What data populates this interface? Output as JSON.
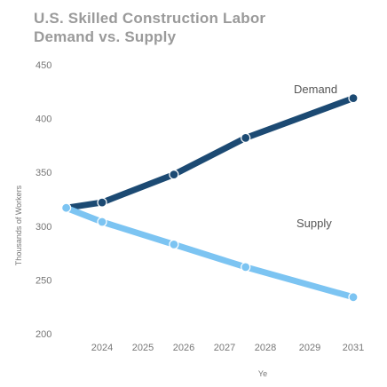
{
  "chart_data": {
    "type": "line",
    "title_lines": [
      "U.S. Skilled Construction Labor",
      "Demand vs. Supply"
    ],
    "xlabel": "Ye",
    "ylabel": "Thousands of Workers",
    "x_tick_labels": [
      "2024",
      "2025",
      "2026",
      "2027",
      "2028",
      "2029",
      "2031"
    ],
    "y_tick_labels": [
      "200",
      "250",
      "300",
      "350",
      "400",
      "450"
    ],
    "ylim": [
      200,
      450
    ],
    "grid": false,
    "series": [
      {
        "name": "Demand",
        "color": "#1c4a73",
        "points": [
          [
            2023,
            317
          ],
          [
            2024,
            322
          ],
          [
            2026,
            348
          ],
          [
            2028,
            382
          ],
          [
            2031,
            419
          ]
        ]
      },
      {
        "name": "Supply",
        "color": "#7cc4f2",
        "points": [
          [
            2023,
            317
          ],
          [
            2024,
            304
          ],
          [
            2026,
            283
          ],
          [
            2028,
            262
          ],
          [
            2031,
            234
          ]
        ]
      }
    ]
  }
}
